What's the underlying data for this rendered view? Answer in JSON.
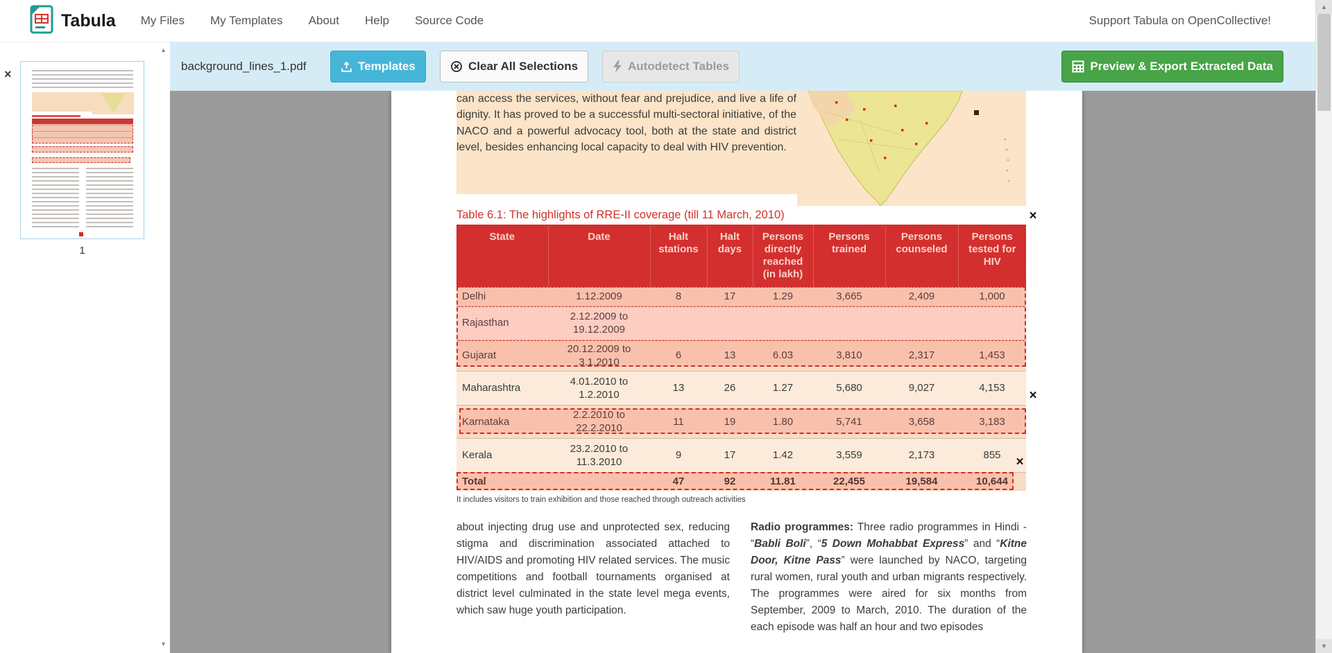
{
  "navbar": {
    "brand": "Tabula",
    "items": [
      "My Files",
      "My Templates",
      "About",
      "Help",
      "Source Code"
    ],
    "support_link": "Support Tabula on OpenCollective!"
  },
  "toolbar": {
    "filename": "background_lines_1.pdf",
    "templates": "Templates",
    "clear": "Clear All Selections",
    "autodetect": "Autodetect Tables",
    "export": "Preview & Export Extracted Data"
  },
  "sidebar": {
    "page_number": "1"
  },
  "icons": {
    "close": "×",
    "scroll_up": "▲",
    "scroll_down": "▼"
  },
  "pdf_page": {
    "intro_paragraph": "can access the services, without fear and prejudice, and live a life of dignity. It has proved to be a successful multi-sectoral initiative, of the NACO and a powerful advocacy tool, both at the state and district level, besides enhancing local capacity to deal with HIV prevention.",
    "table_title": "Table 6.1: The highlights of RRE-II coverage (till 11 March, 2010)",
    "table": {
      "headers": [
        "State",
        "Date",
        "Halt stations",
        "Halt days",
        "Persons directly reached (in lakh)",
        "Persons trained",
        "Persons counseled",
        "Persons tested for HIV"
      ],
      "rows": [
        [
          "Delhi",
          "1.12.2009",
          "8",
          "17",
          "1.29",
          "3,665",
          "2,409",
          "1,000"
        ],
        [
          "Rajasthan",
          "2.12.2009 to 19.12.2009",
          "",
          "",
          "",
          "",
          "",
          ""
        ],
        [
          "Gujarat",
          "20.12.2009 to 3.1.2010",
          "6",
          "13",
          "6.03",
          "3,810",
          "2,317",
          "1,453"
        ],
        [
          "Maharashtra",
          "4.01.2010 to 1.2.2010",
          "13",
          "26",
          "1.27",
          "5,680",
          "9,027",
          "4,153"
        ],
        [
          "Karnataka",
          "2.2.2010 to 22.2.2010",
          "11",
          "19",
          "1.80",
          "5,741",
          "3,658",
          "3,183"
        ],
        [
          "Kerala",
          "23.2.2010 to 11.3.2010",
          "9",
          "17",
          "1.42",
          "3,559",
          "2,173",
          "855"
        ],
        [
          "Total",
          "",
          "47",
          "92",
          "11.81",
          "22,455",
          "19,584",
          "10,644"
        ]
      ]
    },
    "footnote": "It includes visitors to train exhibition and those reached through outreach activities",
    "left_column": "about injecting drug use and unprotected sex, reducing stigma and discrimination associated attached to HIV/AIDS and promoting HIV related services. The music competitions and football tournaments organised at district level culminated in the state level mega events, which saw huge youth participation.",
    "right_column_segments": [
      {
        "text": "Radio programmes:",
        "bold": true
      },
      {
        "text": " Three radio programmes in Hindi - “"
      },
      {
        "text": "Babli Boli",
        "bold": true,
        "italic": true
      },
      {
        "text": "”, “"
      },
      {
        "text": "5 Down Mohabbat Express",
        "bold": true,
        "italic": true
      },
      {
        "text": "” and “"
      },
      {
        "text": "Kitne Door, Kitne Pass",
        "bold": true,
        "italic": true
      },
      {
        "text": "” were launched by NACO, targeting rural women, rural youth and urban migrants respectively. The programmes were aired for six months from September, 2009 to March, 2010. The duration of the each episode was half an hour and two episodes"
      }
    ]
  }
}
